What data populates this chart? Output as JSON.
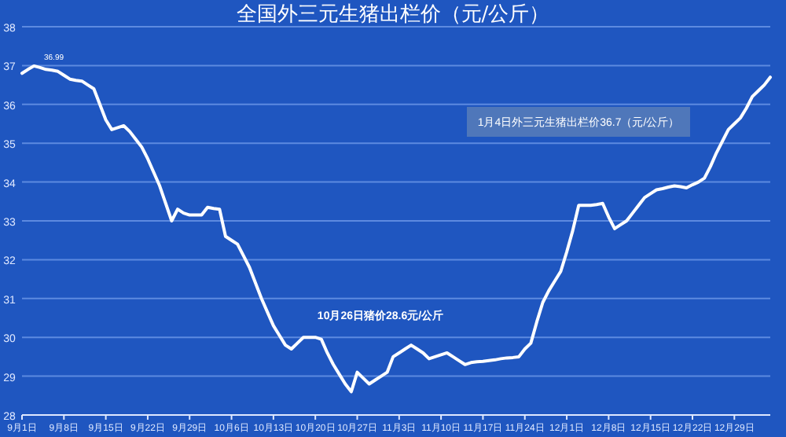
{
  "chart_data": {
    "type": "line",
    "title": "全国外三元生猪出栏价（元/公斤）",
    "categories": [
      "9月1日",
      null,
      null,
      null,
      null,
      null,
      null,
      "9月8日",
      null,
      null,
      null,
      null,
      null,
      null,
      "9月15日",
      null,
      null,
      null,
      null,
      null,
      null,
      "9月22日",
      null,
      null,
      null,
      null,
      null,
      null,
      "9月29日",
      null,
      null,
      null,
      null,
      null,
      null,
      "10月6日",
      null,
      null,
      null,
      null,
      null,
      null,
      "10月13日",
      null,
      null,
      null,
      null,
      null,
      null,
      "10月20日",
      null,
      null,
      null,
      null,
      null,
      null,
      "10月27日",
      null,
      null,
      null,
      null,
      null,
      null,
      "11月3日",
      null,
      null,
      null,
      null,
      null,
      null,
      "11月10日",
      null,
      null,
      null,
      null,
      null,
      null,
      "11月17日",
      null,
      null,
      null,
      null,
      null,
      null,
      "11月24日",
      null,
      null,
      null,
      null,
      null,
      null,
      "12月1日",
      null,
      null,
      null,
      null,
      null,
      null,
      "12月8日",
      null,
      null,
      null,
      null,
      null,
      null,
      "12月15日",
      null,
      null,
      null,
      null,
      null,
      null,
      "12月22日",
      null,
      null,
      null,
      null,
      null,
      null,
      "12月29日",
      null,
      null,
      null,
      null,
      null,
      null
    ],
    "series": [
      {
        "color": "#ffffff",
        "values": [
          36.8,
          36.9,
          36.99,
          36.95,
          36.9,
          36.88,
          36.85,
          36.75,
          36.65,
          36.62,
          36.6,
          36.5,
          36.4,
          36.0,
          35.6,
          35.35,
          35.4,
          35.45,
          35.3,
          35.1,
          34.9,
          34.6,
          34.25,
          33.9,
          33.45,
          33.0,
          33.3,
          33.2,
          33.15,
          33.15,
          33.15,
          33.35,
          33.32,
          33.3,
          32.6,
          32.5,
          32.4,
          32.1,
          31.8,
          31.4,
          31.0,
          30.65,
          30.3,
          30.05,
          29.8,
          29.7,
          29.85,
          30.0,
          30.0,
          30.0,
          29.95,
          29.6,
          29.3,
          29.05,
          28.8,
          28.6,
          29.1,
          28.95,
          28.8,
          28.9,
          29.0,
          29.1,
          29.5,
          29.6,
          29.7,
          29.8,
          29.7,
          29.6,
          29.45,
          29.5,
          29.55,
          29.6,
          29.5,
          29.4,
          29.3,
          29.35,
          29.37,
          29.38,
          29.4,
          29.42,
          29.45,
          29.47,
          29.48,
          29.5,
          29.7,
          29.85,
          30.4,
          30.9,
          31.2,
          31.45,
          31.7,
          32.2,
          32.75,
          33.4,
          33.4,
          33.4,
          33.42,
          33.45,
          33.1,
          32.8,
          32.9,
          33.0,
          33.2,
          33.4,
          33.6,
          33.7,
          33.8,
          33.83,
          33.87,
          33.9,
          33.88,
          33.85,
          33.93,
          34.0,
          34.1,
          34.4,
          34.75,
          35.05,
          35.35,
          35.5,
          35.65,
          35.9,
          36.2,
          36.35,
          36.5,
          36.7
        ]
      }
    ],
    "ylim": [
      28,
      38
    ],
    "yticks": [
      28,
      29,
      30,
      31,
      32,
      33,
      34,
      35,
      36,
      37,
      38
    ],
    "grid": "y",
    "marker": "none",
    "line_style": "solid",
    "annotations": [
      "36.99",
      "10月26日猪价28.6元/公斤",
      "1月4日外三元生猪出栏价36.7（元/公斤）"
    ]
  }
}
